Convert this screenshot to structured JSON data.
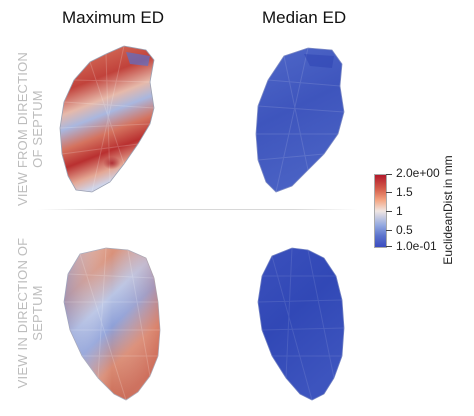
{
  "columns": {
    "left_title": "Maximum ED",
    "right_title": "Median ED"
  },
  "rows": {
    "top_label_line1": "VIEW FROM DIRECTION",
    "top_label_line2": "OF SEPTUM",
    "bottom_label_line1": "VIEW IN DIRECTION OF",
    "bottom_label_line2": "SEPTUM"
  },
  "colorbar": {
    "title": "EuclideanDist in mm",
    "ticks": [
      "2.0e+00",
      "1.5",
      "1",
      "0.5",
      "1.0e-01"
    ],
    "colors": {
      "high": "#b2182b",
      "mid": "#f0e6e2",
      "low": "#3b4cc0"
    }
  }
}
